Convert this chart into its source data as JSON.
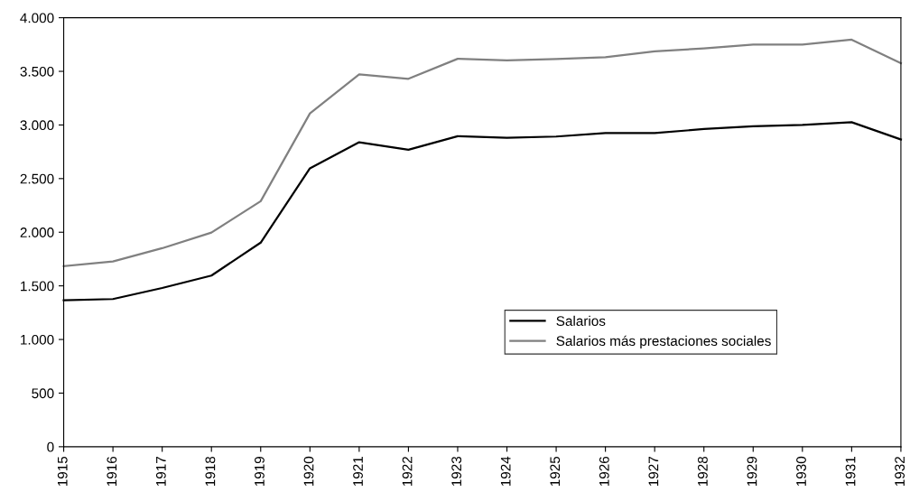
{
  "chart_data": {
    "type": "line",
    "categories": [
      "1915",
      "1916",
      "1917",
      "1918",
      "1919",
      "1920",
      "1921",
      "1922",
      "1923",
      "1924",
      "1925",
      "1926",
      "1927",
      "1928",
      "1929",
      "1930",
      "1931",
      "1932"
    ],
    "series": [
      {
        "name": "Salarios",
        "color": "#000000",
        "values": [
          1365,
          1377,
          1480,
          1596,
          1903,
          2596,
          2839,
          2769,
          2895,
          2880,
          2892,
          2924,
          2924,
          2962,
          2988,
          3000,
          3026,
          2865
        ]
      },
      {
        "name": "Salarios más prestaciones sociales",
        "color": "#808080",
        "values": [
          1684,
          1728,
          1851,
          1997,
          2289,
          3108,
          3471,
          3430,
          3617,
          3602,
          3614,
          3632,
          3687,
          3713,
          3749,
          3749,
          3795,
          3576
        ]
      }
    ],
    "ylim": [
      0,
      4000
    ],
    "yticks": [
      0,
      500,
      {
        "value": 1000,
        "label": "1.000"
      },
      {
        "value": 1500,
        "label": "1.500"
      },
      {
        "value": 2000,
        "label": "2.000"
      },
      {
        "value": 2500,
        "label": "2.500"
      },
      {
        "value": 3000,
        "label": "3.000"
      },
      {
        "value": 3500,
        "label": "3.500"
      },
      {
        "value": 4000,
        "label": "4.000"
      }
    ],
    "grid": false,
    "legend": "bottom right",
    "marker": "none",
    "line_style": "solid"
  }
}
